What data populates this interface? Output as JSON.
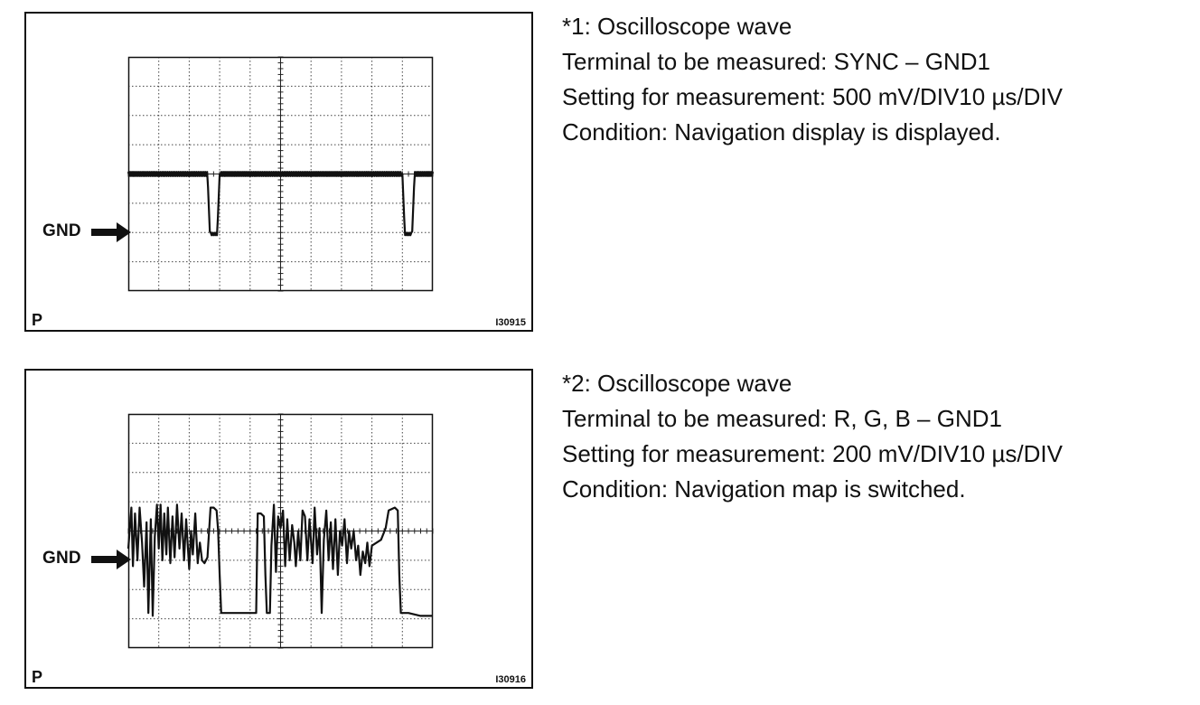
{
  "arrow_label": "GND",
  "panels": [
    {
      "corner_label": "P",
      "figure_id": "I30915",
      "caption": {
        "heading": "*1: Oscilloscope wave",
        "terminal": "Terminal to be measured: SYNC – GND1",
        "setting": "Setting for measurement: 500 mV/DIV10 µs/DIV",
        "condition": "Condition: Navigation display is displayed."
      },
      "waveform": {
        "type": "sync pulse",
        "units": "divisions",
        "x_range": [
          0,
          10
        ],
        "y_range": [
          -2,
          6
        ],
        "gnd_level": 0,
        "high_level": 2,
        "pulses": [
          {
            "start": 2.6,
            "end": 3.0,
            "low": -0.05
          },
          {
            "start": 9.0,
            "end": 9.4,
            "low": -0.05
          }
        ]
      }
    },
    {
      "corner_label": "P",
      "figure_id": "I30916",
      "caption": {
        "heading": "*2: Oscilloscope wave",
        "terminal": "Terminal to be measured: R, G, B – GND1",
        "setting": "Setting for measurement: 200 mV/DIV10 µs/DIV",
        "condition": "Condition: Navigation map is switched."
      },
      "waveform": {
        "type": "video signal",
        "units": "divisions",
        "x_range": [
          0,
          10
        ],
        "y_range": [
          -2,
          6
        ],
        "gnd_level": 0,
        "points": [
          [
            0,
            1.4
          ],
          [
            0.1,
            2.8
          ],
          [
            0.15,
            0.8
          ],
          [
            0.22,
            2.6
          ],
          [
            0.3,
            1.0
          ],
          [
            0.37,
            2.8
          ],
          [
            0.45,
            1.6
          ],
          [
            0.52,
            0.1
          ],
          [
            0.6,
            2.3
          ],
          [
            0.66,
            -0.8
          ],
          [
            0.74,
            2.4
          ],
          [
            0.8,
            -0.9
          ],
          [
            0.87,
            1.8
          ],
          [
            0.94,
            2.9
          ],
          [
            1.0,
            1.4
          ],
          [
            1.06,
            2.9
          ],
          [
            1.12,
            1.0
          ],
          [
            1.18,
            2.6
          ],
          [
            1.25,
            1.2
          ],
          [
            1.3,
            2.8
          ],
          [
            1.38,
            0.9
          ],
          [
            1.45,
            2.5
          ],
          [
            1.52,
            1.1
          ],
          [
            1.6,
            2.9
          ],
          [
            1.68,
            1.4
          ],
          [
            1.75,
            2.6
          ],
          [
            1.83,
            1.0
          ],
          [
            1.9,
            2.4
          ],
          [
            2.0,
            0.7
          ],
          [
            2.06,
            2.0
          ],
          [
            2.12,
            1.2
          ],
          [
            2.2,
            2.6
          ],
          [
            2.28,
            0.9
          ],
          [
            2.35,
            1.6
          ],
          [
            2.42,
            1.0
          ],
          [
            2.5,
            0.9
          ],
          [
            2.6,
            1.1
          ],
          [
            2.7,
            2.8
          ],
          [
            2.8,
            2.8
          ],
          [
            2.9,
            2.7
          ],
          [
            2.95,
            2.0
          ],
          [
            3.0,
            0.5
          ],
          [
            3.05,
            -0.8
          ],
          [
            3.5,
            -0.8
          ],
          [
            4.0,
            -0.8
          ],
          [
            4.2,
            -0.8
          ],
          [
            4.25,
            2.6
          ],
          [
            4.35,
            2.6
          ],
          [
            4.45,
            2.5
          ],
          [
            4.5,
            0.5
          ],
          [
            4.55,
            -0.8
          ],
          [
            4.65,
            -0.8
          ],
          [
            4.7,
            1.5
          ],
          [
            4.78,
            2.9
          ],
          [
            4.85,
            0.6
          ],
          [
            4.92,
            2.5
          ],
          [
            5.0,
            2.1
          ],
          [
            5.08,
            2.7
          ],
          [
            5.15,
            0.8
          ],
          [
            5.22,
            2.4
          ],
          [
            5.3,
            1.0
          ],
          [
            5.38,
            2.2
          ],
          [
            5.45,
            1.6
          ],
          [
            5.5,
            0.8
          ],
          [
            5.58,
            2.0
          ],
          [
            5.65,
            1.0
          ],
          [
            5.72,
            2.7
          ],
          [
            5.8,
            2.5
          ],
          [
            5.88,
            1.0
          ],
          [
            5.95,
            2.4
          ],
          [
            6.05,
            0.9
          ],
          [
            6.12,
            2.8
          ],
          [
            6.2,
            1.2
          ],
          [
            6.28,
            2.1
          ],
          [
            6.35,
            -0.8
          ],
          [
            6.42,
            1.7
          ],
          [
            6.5,
            2.7
          ],
          [
            6.58,
            1.0
          ],
          [
            6.65,
            2.3
          ],
          [
            6.72,
            0.7
          ],
          [
            6.8,
            2.4
          ],
          [
            6.88,
            0.5
          ],
          [
            6.95,
            2.0
          ],
          [
            7.02,
            1.5
          ],
          [
            7.1,
            2.4
          ],
          [
            7.18,
            0.9
          ],
          [
            7.25,
            2.0
          ],
          [
            7.32,
            1.4
          ],
          [
            7.4,
            2.0
          ],
          [
            7.48,
            1.0
          ],
          [
            7.55,
            1.5
          ],
          [
            7.62,
            0.5
          ],
          [
            7.7,
            1.3
          ],
          [
            7.78,
            0.9
          ],
          [
            7.85,
            1.6
          ],
          [
            7.92,
            0.8
          ],
          [
            8.0,
            1.5
          ],
          [
            8.3,
            1.7
          ],
          [
            8.45,
            2.1
          ],
          [
            8.55,
            2.7
          ],
          [
            8.75,
            2.8
          ],
          [
            8.85,
            2.7
          ],
          [
            8.9,
            0.5
          ],
          [
            8.95,
            -0.8
          ],
          [
            9.2,
            -0.8
          ],
          [
            9.6,
            -0.9
          ],
          [
            10.0,
            -0.9
          ]
        ]
      }
    }
  ]
}
